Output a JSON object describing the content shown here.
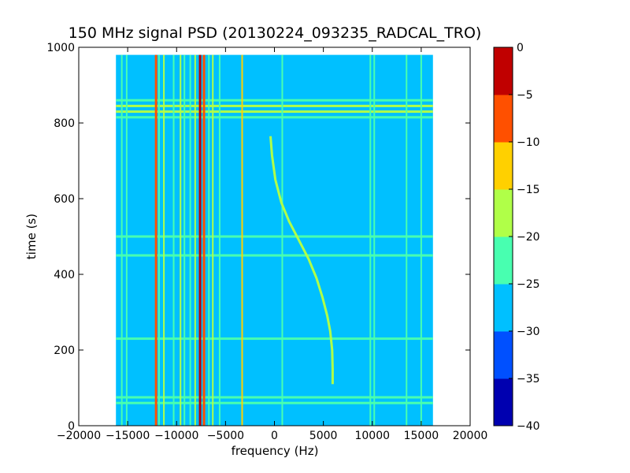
{
  "chart_data": {
    "type": "heatmap",
    "title": "150 MHz signal PSD (20130224_093235_RADCAL_TRO)",
    "xlabel": "frequency (Hz)",
    "ylabel": "time (s)",
    "xlim": [
      -20000,
      20000
    ],
    "ylim": [
      0,
      1000
    ],
    "x_ticks": [
      -20000,
      -15000,
      -10000,
      -5000,
      0,
      5000,
      10000,
      15000,
      20000
    ],
    "x_tick_labels": [
      "−20000",
      "−15000",
      "−10000",
      "−5000",
      "0",
      "5000",
      "10000",
      "15000",
      "20000"
    ],
    "y_ticks": [
      0,
      200,
      400,
      600,
      800,
      1000
    ],
    "y_tick_labels": [
      "0",
      "200",
      "400",
      "600",
      "800",
      "1000"
    ],
    "data_extent": {
      "freq": [
        -16200,
        16200
      ],
      "time": [
        0,
        980
      ]
    },
    "background_level_db": -27.5,
    "colorbar": {
      "min": -40,
      "max": 0,
      "levels": [
        -40,
        -35,
        -30,
        -25,
        -20,
        -15,
        -10,
        -5,
        0
      ],
      "tick_labels": [
        "0",
        "−5",
        "−10",
        "−15",
        "−20",
        "−25",
        "−30",
        "−35",
        "−40"
      ],
      "colors": [
        "#0000b0",
        "#0050ff",
        "#00c0ff",
        "#48ffb0",
        "#b0ff48",
        "#ffd000",
        "#ff5000",
        "#c00000"
      ]
    },
    "vertical_lines": [
      {
        "freq": -15600,
        "level_db": -22
      },
      {
        "freq": -15100,
        "level_db": -22
      },
      {
        "freq": -12100,
        "level_db": -7
      },
      {
        "freq": -11800,
        "level_db": -22
      },
      {
        "freq": -11300,
        "level_db": -17
      },
      {
        "freq": -10300,
        "level_db": -22
      },
      {
        "freq": -9600,
        "level_db": -17
      },
      {
        "freq": -9200,
        "level_db": -22
      },
      {
        "freq": -8600,
        "level_db": -22
      },
      {
        "freq": -8100,
        "level_db": -17
      },
      {
        "freq": -7600,
        "level_db": -2
      },
      {
        "freq": -7200,
        "level_db": -7
      },
      {
        "freq": -6700,
        "level_db": -22
      },
      {
        "freq": -6300,
        "level_db": -17
      },
      {
        "freq": -5600,
        "level_db": -22
      },
      {
        "freq": -3300,
        "level_db": -12
      },
      {
        "freq": 800,
        "level_db": -22
      },
      {
        "freq": 9800,
        "level_db": -22
      },
      {
        "freq": 10200,
        "level_db": -22
      },
      {
        "freq": 13500,
        "level_db": -22
      },
      {
        "freq": 15000,
        "level_db": -22
      }
    ],
    "horizontal_bands": [
      {
        "time": 815,
        "level_db": -22
      },
      {
        "time": 830,
        "level_db": -17
      },
      {
        "time": 845,
        "level_db": -17
      },
      {
        "time": 860,
        "level_db": -22
      },
      {
        "time": 500,
        "level_db": -22
      },
      {
        "time": 450,
        "level_db": -22
      },
      {
        "time": 230,
        "level_db": -22
      },
      {
        "time": 75,
        "level_db": -22
      },
      {
        "time": 60,
        "level_db": -22
      }
    ],
    "drifting_signal": {
      "level_db": -17,
      "points": [
        {
          "freq": -400,
          "time": 765
        },
        {
          "freq": -250,
          "time": 715
        },
        {
          "freq": 100,
          "time": 650
        },
        {
          "freq": 700,
          "time": 590
        },
        {
          "freq": 1500,
          "time": 540
        },
        {
          "freq": 2500,
          "time": 490
        },
        {
          "freq": 3500,
          "time": 440
        },
        {
          "freq": 4300,
          "time": 390
        },
        {
          "freq": 4900,
          "time": 340
        },
        {
          "freq": 5400,
          "time": 290
        },
        {
          "freq": 5700,
          "time": 250
        },
        {
          "freq": 5900,
          "time": 200
        },
        {
          "freq": 5950,
          "time": 150
        },
        {
          "freq": 5950,
          "time": 110
        }
      ]
    }
  }
}
